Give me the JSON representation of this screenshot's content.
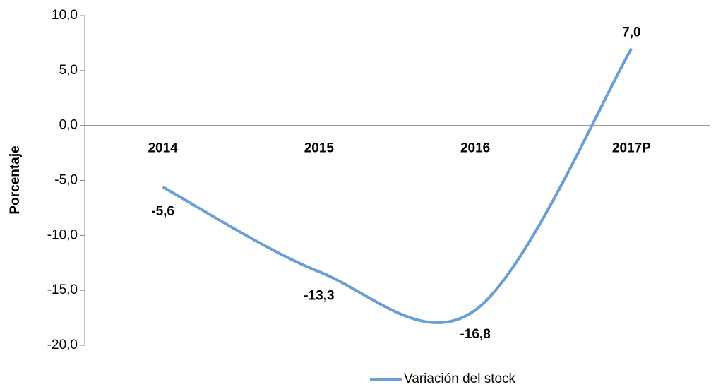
{
  "chart_data": {
    "type": "line",
    "y_axis_label": "Porcentaje",
    "categories": [
      "2014",
      "2015",
      "2016",
      "2017P"
    ],
    "series": [
      {
        "name": "Variación del stock",
        "color": "#6a9fd4",
        "values": [
          -5.6,
          -13.3,
          -16.8,
          7.0
        ],
        "value_labels": [
          "-5,6",
          "-13,3",
          "-16,8",
          "7,0"
        ]
      }
    ],
    "ylim": [
      -20,
      10
    ],
    "yticks": [
      {
        "value": -20,
        "label": "-20,0"
      },
      {
        "value": -15,
        "label": "-15,0"
      },
      {
        "value": -10,
        "label": "-10,0"
      },
      {
        "value": -5,
        "label": "-5,0"
      },
      {
        "value": 0,
        "label": "0,0"
      },
      {
        "value": 5,
        "label": "5,0"
      },
      {
        "value": 10,
        "label": "10,0"
      }
    ],
    "legend": "bottom",
    "smooth": true
  }
}
